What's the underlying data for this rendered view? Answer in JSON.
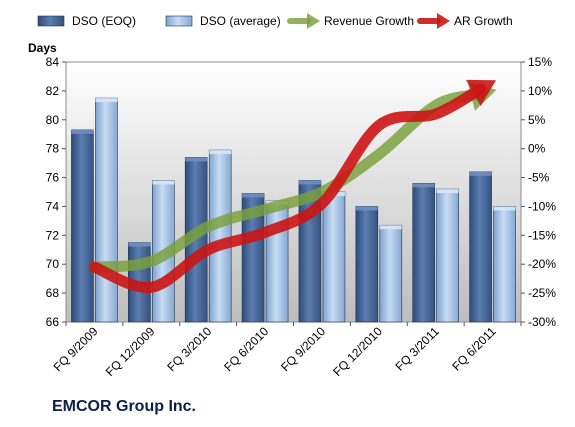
{
  "chart_data": {
    "type": "bar",
    "title": "EMCOR Group Inc.",
    "ylabel": "Days",
    "categories": [
      "FQ 9/2009",
      "FQ 12/2009",
      "FQ 3/2010",
      "FQ 6/2010",
      "FQ 9/2010",
      "FQ 12/2010",
      "FQ 3/2011",
      "FQ 6/2011"
    ],
    "ylim": [
      66,
      84
    ],
    "y_ticks": [
      "66",
      "68",
      "70",
      "72",
      "74",
      "76",
      "78",
      "80",
      "82",
      "84"
    ],
    "y2lim": [
      -30,
      15
    ],
    "y2_ticks": [
      "-30%",
      "-25%",
      "-20%",
      "-15%",
      "-10%",
      "-5%",
      "0%",
      "5%",
      "10%",
      "15%"
    ],
    "grid": false,
    "legend_position": "top",
    "series": [
      {
        "name": "DSO (EOQ)",
        "kind": "bar",
        "axis": "left",
        "color": "#3f5f8f",
        "values": [
          79.3,
          71.5,
          77.4,
          74.9,
          75.8,
          74.0,
          75.6,
          76.4
        ]
      },
      {
        "name": "DSO (average)",
        "kind": "bar",
        "axis": "left",
        "color": "#9dbbe0",
        "values": [
          81.5,
          75.8,
          77.9,
          74.4,
          75.0,
          72.7,
          75.2,
          74.0
        ]
      },
      {
        "name": "Revenue Growth",
        "kind": "arrow-line",
        "axis": "right",
        "color": "#7ea23c",
        "values": [
          -20.5,
          -19.5,
          -13.5,
          -10.5,
          -7.5,
          -1.0,
          7.5,
          10.0
        ]
      },
      {
        "name": "AR Growth",
        "kind": "arrow-line",
        "axis": "right",
        "color": "#c81e1e",
        "values": [
          -20.5,
          -24.0,
          -17.5,
          -14.5,
          -9.5,
          4.0,
          6.0,
          11.5
        ]
      }
    ]
  }
}
